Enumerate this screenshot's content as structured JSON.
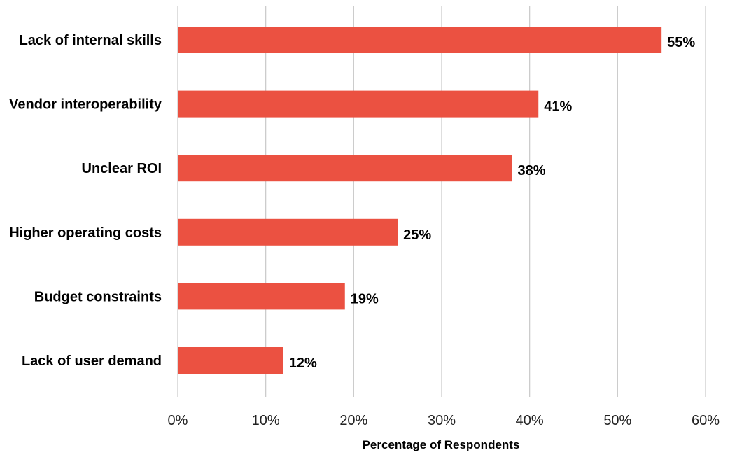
{
  "chart_data": {
    "type": "bar",
    "orientation": "horizontal",
    "title": "",
    "categories": [
      "Lack of internal skills",
      "Vendor interoperability",
      "Unclear ROI",
      "Higher operating costs",
      "Budget constraints",
      "Lack of user demand"
    ],
    "values": [
      55,
      41,
      38,
      25,
      19,
      12
    ],
    "value_labels": [
      "55%",
      "41%",
      "38%",
      "25%",
      "19%",
      "12%"
    ],
    "xlabel": "Percentage of Respondents",
    "ylabel": "",
    "xlim": [
      0,
      60
    ],
    "x_ticks": [
      0,
      10,
      20,
      30,
      40,
      50,
      60
    ],
    "x_tick_labels": [
      "0%",
      "10%",
      "20%",
      "30%",
      "40%",
      "50%",
      "60%"
    ],
    "grid": "vertical",
    "bar_color": "#eb5141",
    "grid_color": "#c8c8c8"
  }
}
